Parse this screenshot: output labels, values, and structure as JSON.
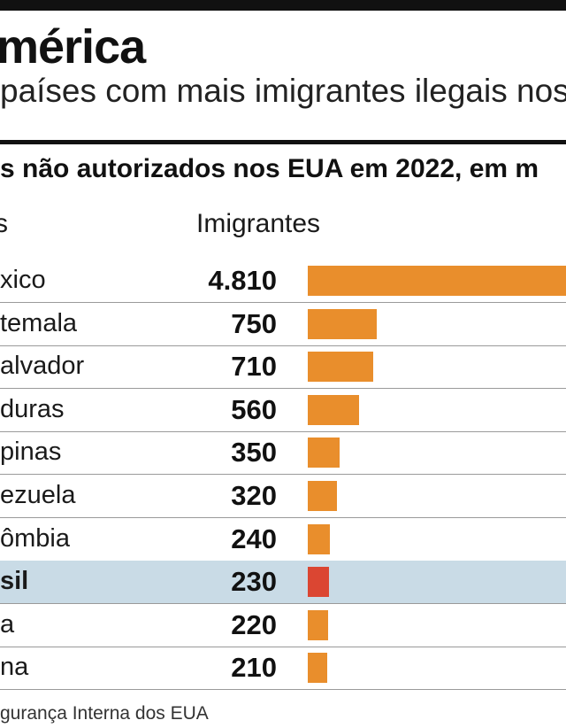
{
  "header": {
    "title": "mérica",
    "subtitle": "países com mais imigrantes ilegais nos",
    "chart_heading": "s não autorizados nos EUA em 2022, em m"
  },
  "columns": {
    "country": "s",
    "immigrants": "Imigrantes"
  },
  "source": "gurança Interna dos EUA",
  "colors": {
    "bar": "#e98e2c",
    "bar_highlight": "#db4632",
    "row_highlight": "#c9dbe6"
  },
  "chart_data": {
    "type": "bar",
    "orientation": "horizontal",
    "categories": [
      "xico",
      "temala",
      "alvador",
      "duras",
      "pinas",
      "ezuela",
      "ômbia",
      "sil",
      "a",
      "na"
    ],
    "values": [
      4810,
      750,
      710,
      560,
      350,
      320,
      240,
      230,
      220,
      210
    ],
    "value_labels": [
      "4.810",
      "750",
      "710",
      "560",
      "350",
      "320",
      "240",
      "230",
      "220",
      "210"
    ],
    "highlight_index": 7,
    "xlim": [
      0,
      2820
    ]
  }
}
